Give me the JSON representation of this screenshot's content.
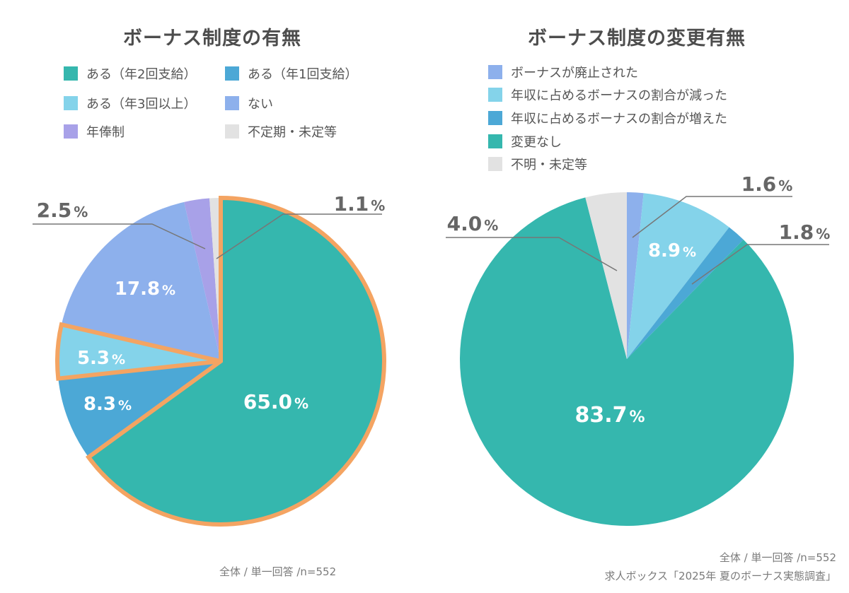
{
  "chart_data": [
    {
      "type": "pie",
      "title": "ボーナス制度の有無",
      "note": "全体 / 単一回答 /n=552",
      "slices": [
        {
          "name": "ある（年2回支給）",
          "value": 65.0,
          "label": "65.0",
          "color": "#35b7ae",
          "highlight": true
        },
        {
          "name": "ある（年1回支給）",
          "value": 8.3,
          "label": "8.3",
          "color": "#4ca8d6"
        },
        {
          "name": "ある（年3回以上）",
          "value": 5.3,
          "label": "5.3",
          "color": "#84d3ea",
          "highlight": true
        },
        {
          "name": "ない",
          "value": 17.8,
          "label": "17.8",
          "color": "#8db0ec"
        },
        {
          "name": "年俸制",
          "value": 2.5,
          "label": "2.5",
          "color": "#a8a1e8"
        },
        {
          "name": "不定期・未定等",
          "value": 1.1,
          "label": "1.1",
          "color": "#e2e2e2"
        }
      ],
      "legend_order": [
        0,
        1,
        2,
        3,
        4,
        5
      ],
      "highlight_color": "#f4a462"
    },
    {
      "type": "pie",
      "title": "ボーナス制度の変更有無",
      "note": "全体 / 単一回答 /n=552",
      "source": "求人ボックス「2025年 夏のボーナス実態調査」",
      "slices": [
        {
          "name": "ボーナスが廃止された",
          "value": 1.6,
          "label": "1.6",
          "color": "#8db0ec"
        },
        {
          "name": "年収に占めるボーナスの割合が減った",
          "value": 8.9,
          "label": "8.9",
          "color": "#84d3ea"
        },
        {
          "name": "年収に占めるボーナスの割合が増えた",
          "value": 1.8,
          "label": "1.8",
          "color": "#4ca8d6"
        },
        {
          "name": "変更なし",
          "value": 83.7,
          "label": "83.7",
          "color": "#35b7ae"
        },
        {
          "name": "不明・未定等",
          "value": 4.0,
          "label": "4.0",
          "color": "#e2e2e2"
        }
      ]
    }
  ],
  "percent_sign": "%"
}
